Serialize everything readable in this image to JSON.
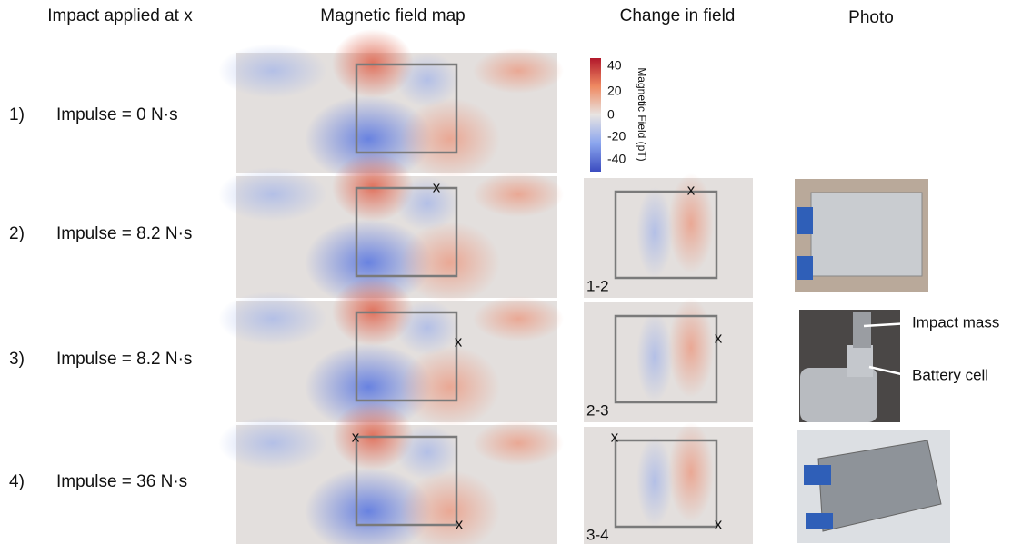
{
  "header": {
    "columns": [
      "Impact applied at x",
      "Magnetic field map",
      "Change in field",
      "Photo"
    ]
  },
  "rows": [
    {
      "index": "1)",
      "label": "Impulse = 0 N·s"
    },
    {
      "index": "2)",
      "label": "Impulse = 8.2 N·s"
    },
    {
      "index": "3)",
      "label": "Impulse = 8.2 N·s"
    },
    {
      "index": "4)",
      "label": "Impulse = 36 N·s"
    }
  ],
  "differences": [
    "1-2",
    "2-3",
    "3-4"
  ],
  "colorbar": {
    "title": "Magnetic Field (pT)",
    "ticks": [
      40,
      20,
      0,
      -20,
      -40
    ]
  },
  "marker": "x",
  "annotations": [
    "Impact mass",
    "Battery cell"
  ]
}
